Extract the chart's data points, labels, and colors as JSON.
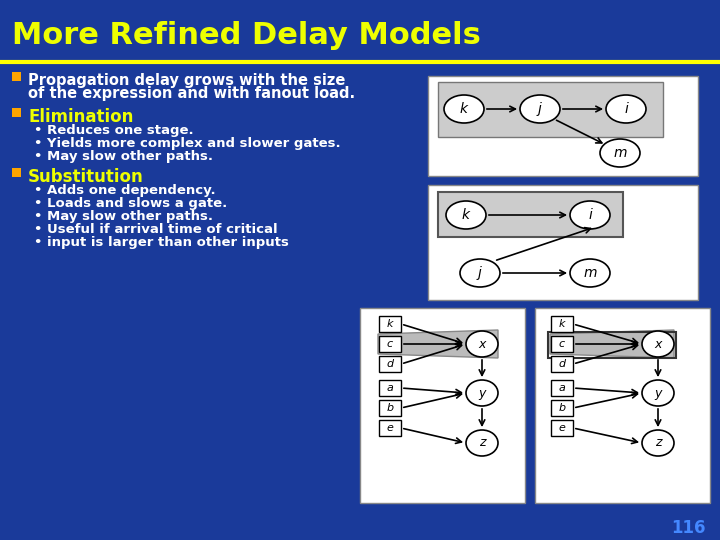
{
  "title": "More Refined Delay Models",
  "title_color": "#EEFF00",
  "title_fontsize": 22,
  "background_color": "#1a3a9a",
  "line_color": "#FFFF00",
  "text_color": "#FFFFFF",
  "bullet_color": "#FFA500",
  "sub_color": "#EEFF00",
  "slide_number": "116",
  "bullet1_header_l1": "Propagation delay grows with the size",
  "bullet1_header_l2": "of the expression and with fanout load.",
  "bullet2_header": "Elimination",
  "bullet2_items": [
    "Reduces one stage.",
    "Yields more complex and slower gates.",
    "May slow other paths."
  ],
  "bullet3_header": "Substitution",
  "bullet3_items": [
    "Adds one dependency.",
    "Loads and slows a gate.",
    "May slow other paths.",
    "Useful if arrival time of critical",
    "input is larger than other inputs"
  ]
}
